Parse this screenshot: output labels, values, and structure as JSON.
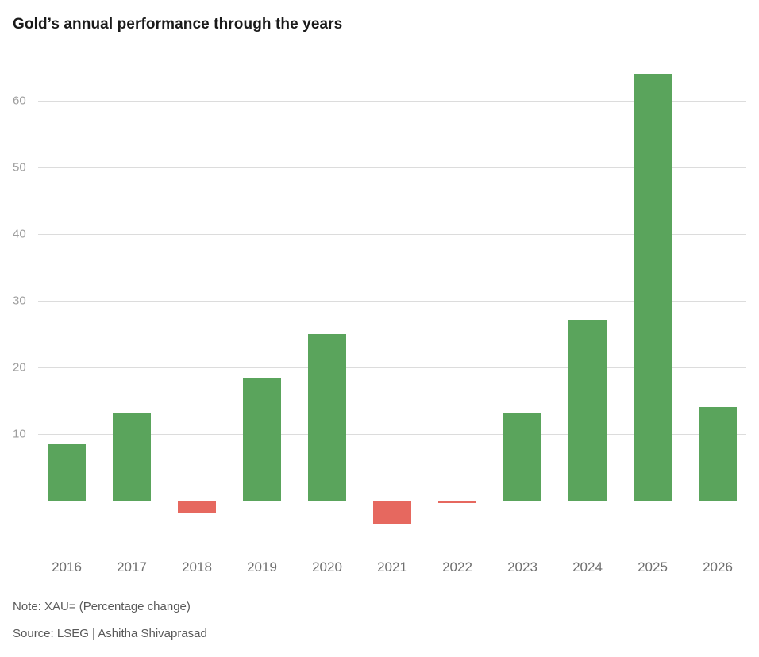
{
  "chart_data": {
    "type": "bar",
    "title": "Gold’s annual performance through the years",
    "categories": [
      "2016",
      "2017",
      "2018",
      "2019",
      "2020",
      "2021",
      "2022",
      "2023",
      "2024",
      "2025",
      "2026"
    ],
    "values": [
      8.5,
      13.1,
      -1.9,
      18.3,
      25.0,
      -3.6,
      -0.4,
      13.1,
      27.2,
      64.0,
      14.1
    ],
    "xlabel": "",
    "ylabel": "",
    "ylim": [
      -6,
      66
    ],
    "yticks": [
      10,
      20,
      30,
      40,
      50,
      60
    ],
    "grid": "horizontal",
    "legend": "none",
    "colors": {
      "positive": "#5aa45c",
      "negative": "#e6685f",
      "gridline": "#dcdcdc",
      "axisline": "#8f8f8f",
      "ytick_label": "#9d9d9d",
      "xtick_label": "#6f6f6f",
      "title": "#1a1a1a",
      "footnote": "#595959"
    }
  },
  "footer": {
    "note": "Note: XAU= (Percentage change)",
    "source": "Source: LSEG | Ashitha Shivaprasad"
  }
}
